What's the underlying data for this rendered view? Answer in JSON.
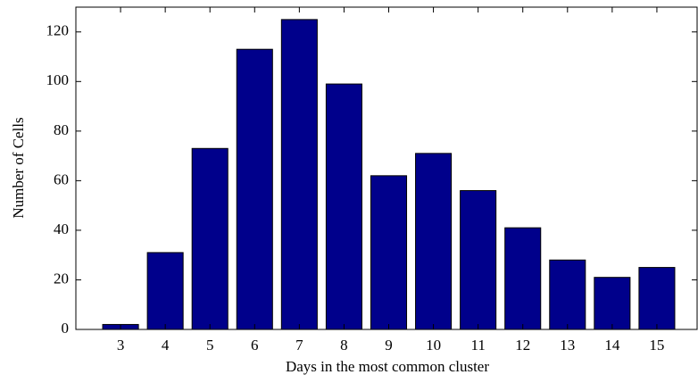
{
  "chart_data": {
    "type": "bar",
    "xlabel": "Days in the most common cluster",
    "ylabel": "Number of Cells",
    "x": [
      3,
      4,
      5,
      6,
      7,
      8,
      9,
      10,
      11,
      12,
      13,
      14,
      15
    ],
    "values": [
      2,
      31,
      73,
      113,
      125,
      99,
      62,
      71,
      56,
      41,
      28,
      21,
      25
    ],
    "color": "#00008b",
    "xlim": [
      2,
      15.9
    ],
    "xticks": [
      3,
      4,
      5,
      6,
      7,
      8,
      9,
      10,
      11,
      12,
      13,
      14,
      15
    ],
    "ylim": [
      0,
      130
    ],
    "yticks": [
      0,
      20,
      40,
      60,
      80,
      100,
      120
    ]
  }
}
